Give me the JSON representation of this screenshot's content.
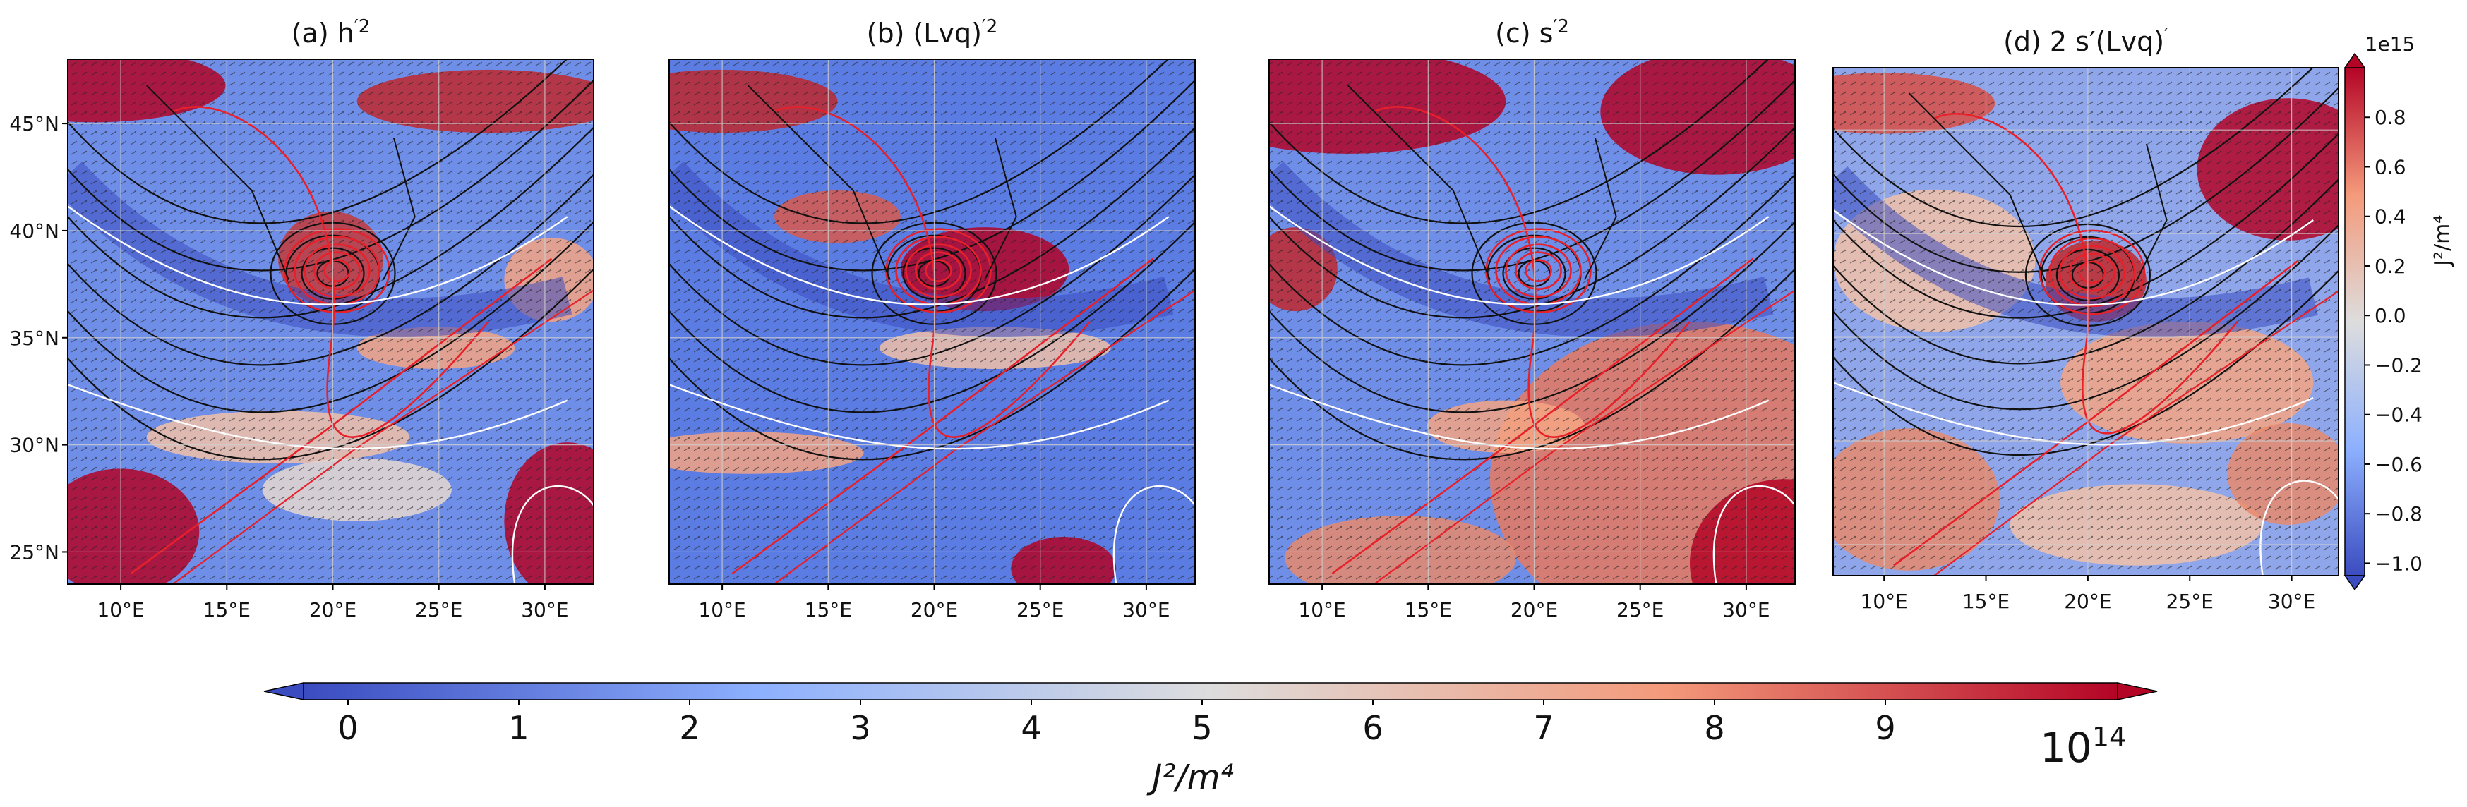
{
  "chart_data": {
    "type": "heatmap",
    "panels": [
      {
        "id": "a",
        "label": "(a)",
        "title_text": "h",
        "title_sup": "′2",
        "title": "(a) ĥ′2",
        "cmap": "coolwarm"
      },
      {
        "id": "b",
        "label": "(b)",
        "title_text": "(Lvq)",
        "title_sup": "′2",
        "title": "(b) (Lv q̂)′2",
        "cmap": "coolwarm"
      },
      {
        "id": "c",
        "label": "(c)",
        "title_text": "s",
        "title_sup": "′2",
        "title": "(c) ŝ′2",
        "cmap": "coolwarm"
      },
      {
        "id": "d",
        "label": "(d)",
        "title_text": "2 s′(Lvq)",
        "title_sup": "′",
        "title": "(d) 2 ŝ′(Lv q̂)′",
        "cmap": "coolwarm"
      }
    ],
    "lon_ticks": [
      10,
      15,
      20,
      25,
      30
    ],
    "lon_tick_labels": [
      "10°E",
      "15°E",
      "20°E",
      "25°E",
      "30°E"
    ],
    "lat_ticks": [
      25,
      30,
      35,
      40,
      45
    ],
    "lat_tick_labels": [
      "25°N",
      "30°N",
      "35°N",
      "40°N",
      "45°N"
    ],
    "lon_range": [
      7.5,
      32.3
    ],
    "lat_range": [
      23.5,
      48.0
    ],
    "grid": true,
    "overlays": [
      "red contours",
      "white contours",
      "black contours",
      "coastlines",
      "wind arrows"
    ],
    "cyclone_center": {
      "lon": 20.0,
      "lat": 38.0
    },
    "colorbar_main": {
      "orientation": "horizontal",
      "ticks": [
        0,
        1,
        2,
        3,
        4,
        5,
        6,
        7,
        8,
        9
      ],
      "range": [
        0,
        10
      ],
      "multiplier": "10",
      "multiplier_exp": "14",
      "label": "J²/m⁴",
      "extend": "both"
    },
    "colorbar_d": {
      "orientation": "vertical",
      "ticks": [
        0.8,
        0.6,
        0.4,
        0.2,
        0.0,
        -0.2,
        -0.4,
        -0.6,
        -0.8,
        -1.0
      ],
      "tick_labels": [
        "0.8",
        "0.6",
        "0.4",
        "0.2",
        "0.0",
        "−0.2",
        "−0.4",
        "−0.6",
        "−0.8",
        "−1.0"
      ],
      "range": [
        -1.05,
        1.0
      ],
      "offset_text": "1e15",
      "label": "J²/m⁴",
      "extend": "both"
    },
    "colors": {
      "low": "#3b4cc0",
      "mid": "#dddddd",
      "high": "#b40426",
      "contour_red": "#e8202a",
      "contour_white": "#ffffff",
      "contour_black": "#111111"
    }
  }
}
